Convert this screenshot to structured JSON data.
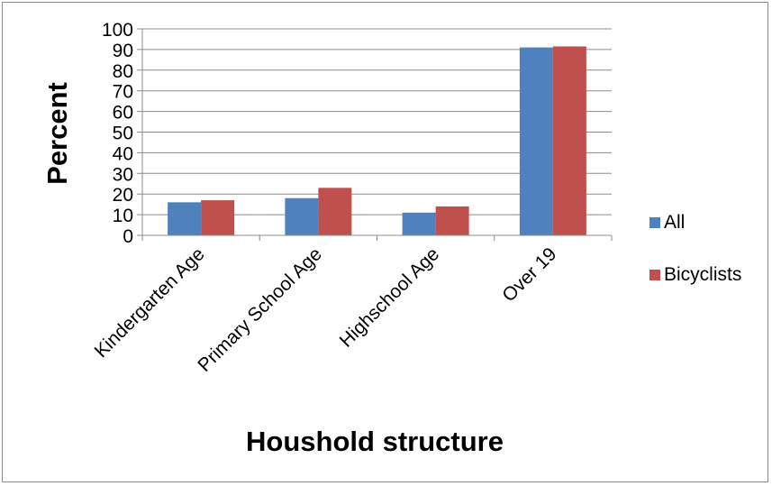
{
  "chart_data": {
    "type": "bar",
    "title": "",
    "xlabel": "Houshold structure",
    "ylabel": "Percent",
    "ylim": [
      0,
      100
    ],
    "yticks": [
      0,
      10,
      20,
      30,
      40,
      50,
      60,
      70,
      80,
      90,
      100
    ],
    "grid": true,
    "legend_position": "right",
    "categories": [
      "Kindergarten Age",
      "Primary School Age",
      "Highschool Age",
      "Over 19"
    ],
    "series": [
      {
        "name": "All",
        "color": "#4f81bd",
        "values": [
          16,
          18,
          11,
          91
        ]
      },
      {
        "name": "Bicyclists",
        "color": "#c0504d",
        "values": [
          17,
          23,
          14,
          91.5
        ]
      }
    ]
  }
}
